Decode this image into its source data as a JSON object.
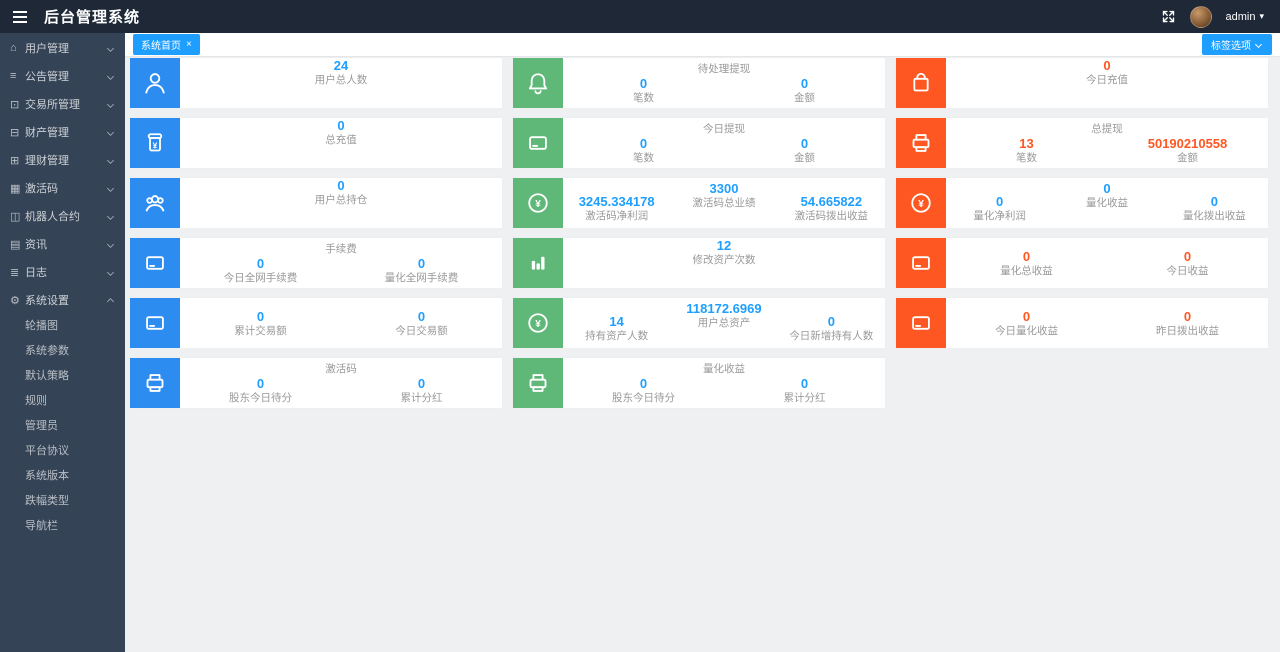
{
  "navbar": {
    "title": "后台管理系统",
    "user": "admin",
    "caret": "▾"
  },
  "tabbar": {
    "active_tab": "系统首页",
    "close": "×",
    "options_button": "标签选项"
  },
  "sidebar": {
    "items": [
      {
        "key": "users",
        "icon": "home-icon",
        "glyph": "⌂",
        "label": "用户管理"
      },
      {
        "key": "announcements",
        "icon": "list-icon",
        "glyph": "≡",
        "label": "公告管理"
      },
      {
        "key": "exchange",
        "icon": "monitor-icon",
        "glyph": "⊡",
        "label": "交易所管理"
      },
      {
        "key": "assets",
        "icon": "wallet-icon",
        "glyph": "⊟",
        "label": "财产管理"
      },
      {
        "key": "finance",
        "icon": "briefcase-icon",
        "glyph": "⊞",
        "label": "理财管理"
      },
      {
        "key": "activation-codes",
        "icon": "grid-icon",
        "glyph": "▦",
        "label": "激活码"
      },
      {
        "key": "robot-contracts",
        "icon": "robot-icon",
        "glyph": "◫",
        "label": "机器人合约"
      },
      {
        "key": "news",
        "icon": "news-icon",
        "glyph": "▤",
        "label": "资讯"
      },
      {
        "key": "logs",
        "icon": "log-icon",
        "glyph": "≣",
        "label": "日志"
      },
      {
        "key": "system-settings",
        "icon": "gear-icon",
        "glyph": "⚙",
        "label": "系统设置",
        "expanded": true,
        "children": [
          {
            "key": "carousel",
            "label": "轮播图"
          },
          {
            "key": "system-params",
            "label": "系统参数"
          },
          {
            "key": "default-strategy",
            "label": "默认策略"
          },
          {
            "key": "rules",
            "label": "规则"
          },
          {
            "key": "admins",
            "label": "管理员"
          },
          {
            "key": "platform-agreement",
            "label": "平台协议"
          },
          {
            "key": "system-version",
            "label": "系统版本"
          },
          {
            "key": "change-type",
            "label": "跌幅类型"
          },
          {
            "key": "nav-bar",
            "label": "导航栏"
          }
        ]
      }
    ]
  },
  "colors": {
    "blue": "#2d8cf0",
    "green": "#5fb878",
    "red": "#ff5722",
    "num_blue": "#1e9fff",
    "num_red": "#ff5722"
  },
  "cards": {
    "columns": [
      {
        "cards": [
          {
            "icon": "user",
            "color": "blue",
            "value_color": "blue",
            "single": {
              "value": "24",
              "label": "用户总人数"
            }
          },
          {
            "icon": "jar",
            "color": "blue",
            "value_color": "blue",
            "single": {
              "value": "0",
              "label": "总充值"
            }
          },
          {
            "icon": "group",
            "color": "blue",
            "value_color": "blue",
            "single": {
              "value": "0",
              "label": "用户总持仓"
            }
          },
          {
            "icon": "card",
            "color": "blue",
            "value_color": "blue",
            "title": "手续费",
            "stats": [
              {
                "value": "0",
                "label": "今日全网手续费"
              },
              {
                "value": "0",
                "label": "量化全网手续费"
              }
            ]
          },
          {
            "icon": "card",
            "color": "blue",
            "value_color": "blue",
            "stats": [
              {
                "value": "0",
                "label": "累计交易额"
              },
              {
                "value": "0",
                "label": "今日交易额"
              }
            ]
          },
          {
            "icon": "printer",
            "color": "blue",
            "value_color": "blue",
            "title": "激活码",
            "stats": [
              {
                "value": "0",
                "label": "股东今日待分"
              },
              {
                "value": "0",
                "label": "累计分红"
              }
            ]
          }
        ]
      },
      {
        "cards": [
          {
            "icon": "bell",
            "color": "green",
            "value_color": "blue",
            "title": "待处理提现",
            "stats": [
              {
                "value": "0",
                "label": "笔数"
              },
              {
                "value": "0",
                "label": "金额"
              }
            ]
          },
          {
            "icon": "card",
            "color": "green",
            "value_color": "blue",
            "title": "今日提现",
            "stats": [
              {
                "value": "0",
                "label": "笔数"
              },
              {
                "value": "0",
                "label": "金额"
              }
            ]
          },
          {
            "icon": "yen",
            "color": "green",
            "value_color": "blue",
            "center": {
              "value": "3300",
              "label": "激活码总业绩"
            },
            "stats": [
              {
                "value": "3245.334178",
                "label": "激活码净利润"
              },
              {
                "value": "54.665822",
                "label": "激活码拨出收益"
              }
            ]
          },
          {
            "icon": "chart",
            "color": "green",
            "value_color": "blue",
            "single": {
              "value": "12",
              "label": "修改资产次数"
            }
          },
          {
            "icon": "yen",
            "color": "green",
            "value_color": "blue",
            "center": {
              "value": "118172.6969",
              "label": "用户总资产"
            },
            "stats": [
              {
                "value": "14",
                "label": "持有资产人数"
              },
              {
                "value": "0",
                "label": "今日新增持有人数"
              }
            ]
          },
          {
            "icon": "printer",
            "color": "green",
            "value_color": "blue",
            "title": "量化收益",
            "stats": [
              {
                "value": "0",
                "label": "股东今日待分"
              },
              {
                "value": "0",
                "label": "累计分红"
              }
            ]
          }
        ]
      },
      {
        "cards": [
          {
            "icon": "bag",
            "color": "red",
            "value_color": "red",
            "single": {
              "value": "0",
              "label": "今日充值"
            }
          },
          {
            "icon": "printer",
            "color": "red",
            "value_color": "red",
            "title": "总提现",
            "stats": [
              {
                "value": "13",
                "label": "笔数"
              },
              {
                "value": "50190210558",
                "label": "金额"
              }
            ]
          },
          {
            "icon": "yen",
            "color": "red",
            "value_color": "blue",
            "center": {
              "value": "0",
              "label": "量化收益"
            },
            "stats": [
              {
                "value": "0",
                "label": "量化净利润"
              },
              {
                "value": "0",
                "label": "量化拨出收益"
              }
            ]
          },
          {
            "icon": "card",
            "color": "red",
            "value_color": "red",
            "stats": [
              {
                "value": "0",
                "label": "量化总收益"
              },
              {
                "value": "0",
                "label": "今日收益"
              }
            ]
          },
          {
            "icon": "card",
            "color": "red",
            "value_color": "red",
            "stats": [
              {
                "value": "0",
                "label": "今日量化收益"
              },
              {
                "value": "0",
                "label": "昨日拨出收益"
              }
            ]
          }
        ]
      }
    ]
  }
}
